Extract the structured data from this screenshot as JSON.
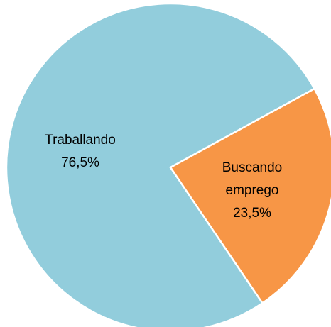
{
  "chart_data": {
    "type": "pie",
    "categories": [
      "Traballando",
      "Buscando emprego"
    ],
    "values": [
      76.5,
      23.5
    ],
    "value_labels": [
      "76,5%",
      "23,5%"
    ],
    "colors": [
      "#92cddc",
      "#f79646"
    ]
  }
}
